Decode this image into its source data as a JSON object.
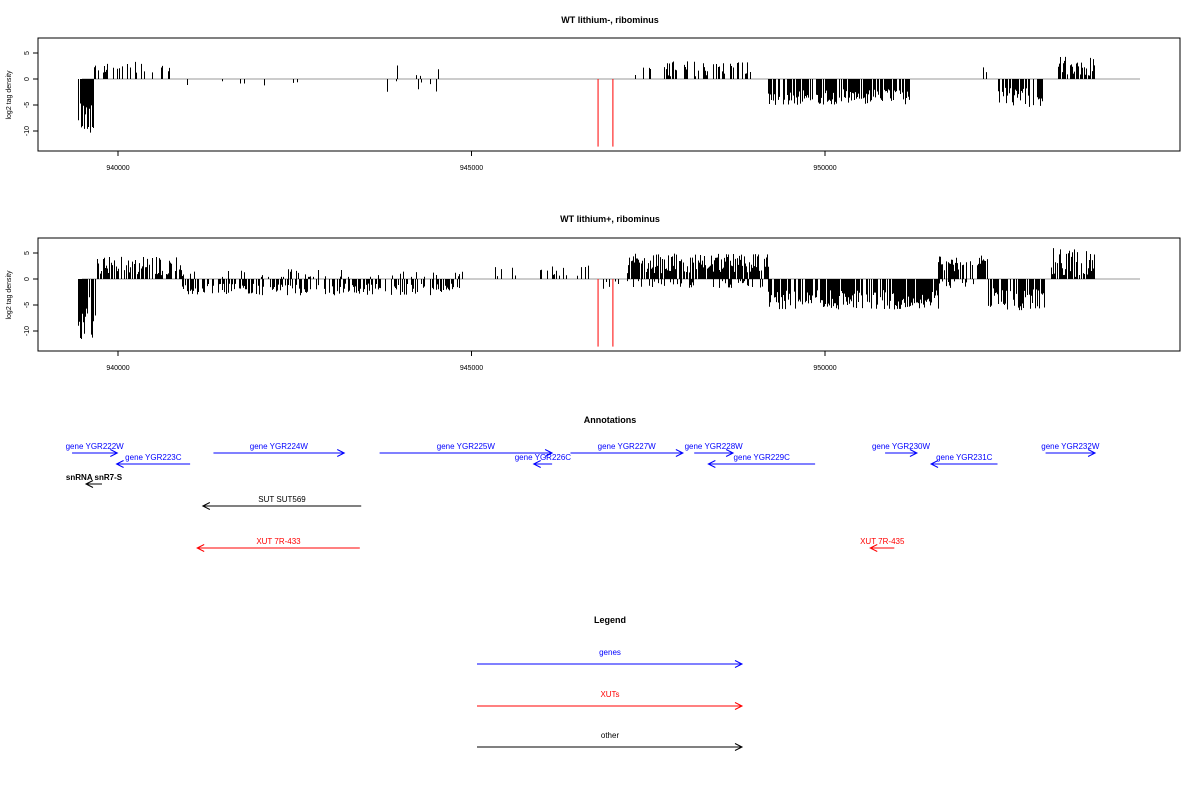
{
  "chart_data": [
    {
      "type": "bar",
      "title": "WT lithium-, ribominus",
      "ylabel": "log2 tag density",
      "xlim": [
        938850,
        953800
      ],
      "ylim": [
        -13,
        8
      ],
      "xticks": [
        940000,
        945000,
        950000
      ],
      "yticks": [
        5,
        0,
        -5,
        -10
      ],
      "ytick_labels": [
        "5",
        "0",
        "-5",
        "-10"
      ],
      "marker_lines": {
        "color": "#ff0000",
        "x": [
          946790,
          947000
        ],
        "y_range": [
          0,
          -13
        ]
      },
      "series": [
        {
          "segments": [
            {
              "x": [
                939430,
                939650
              ],
              "base": -3.5,
              "amp": 7,
              "sign": -1,
              "density": 0.9
            },
            {
              "x": [
                939650,
                940800
              ],
              "base": 2.0,
              "amp": 2.0,
              "sign": 1,
              "density": 0.3
            },
            {
              "x": [
                940900,
                942600
              ],
              "base": 1.0,
              "amp": 1.0,
              "sign": -1,
              "density": 0.08
            },
            {
              "x": [
                943800,
                944600
              ],
              "base": 1.5,
              "amp": 1.5,
              "sign": 1,
              "density": 0.08
            },
            {
              "x": [
                943800,
                944600
              ],
              "base": 1.5,
              "amp": 1.5,
              "sign": -1,
              "density": 0.06
            },
            {
              "x": [
                947250,
                949000
              ],
              "base": 2.0,
              "amp": 2.0,
              "sign": 1,
              "density": 0.35
            },
            {
              "x": [
                949200,
                951200
              ],
              "base": 3.5,
              "amp": 2.0,
              "sign": -1,
              "density": 0.75
            },
            {
              "x": [
                952100,
                952300
              ],
              "base": 2.0,
              "amp": 1.0,
              "sign": 1,
              "density": 0.2
            },
            {
              "x": [
                952400,
                953100
              ],
              "base": 3.5,
              "amp": 2.5,
              "sign": -1,
              "density": 0.7
            },
            {
              "x": [
                953300,
                953800
              ],
              "base": 2.5,
              "amp": 2.5,
              "sign": 1,
              "density": 0.7
            }
          ]
        }
      ]
    },
    {
      "type": "bar",
      "title": "WT lithium+, ribominus",
      "ylabel": "log2 tag density",
      "xlim": [
        938850,
        953800
      ],
      "ylim": [
        -13,
        8
      ],
      "xticks": [
        940000,
        945000,
        950000
      ],
      "yticks": [
        5,
        0,
        -5,
        -10
      ],
      "ytick_labels": [
        "5",
        "0",
        "-5",
        "-10"
      ],
      "marker_lines": {
        "color": "#ff0000",
        "x": [
          946790,
          947000
        ],
        "y_range": [
          0,
          -13
        ]
      },
      "series": [
        {
          "segments": [
            {
              "x": [
                939430,
                939680
              ],
              "base": -3.5,
              "amp": 8.5,
              "sign": -1,
              "density": 0.9
            },
            {
              "x": [
                939700,
                940900
              ],
              "base": 2.5,
              "amp": 2.5,
              "sign": 1,
              "density": 0.6
            },
            {
              "x": [
                940900,
                943200
              ],
              "base": 2.0,
              "amp": 1.5,
              "sign": -1,
              "density": 0.55
            },
            {
              "x": [
                940900,
                943200
              ],
              "base": 1.0,
              "amp": 1.5,
              "sign": 1,
              "density": 0.15
            },
            {
              "x": [
                943200,
                944900
              ],
              "base": 2.0,
              "amp": 1.5,
              "sign": -1,
              "density": 0.5
            },
            {
              "x": [
                943200,
                944900
              ],
              "base": 1.0,
              "amp": 1.0,
              "sign": 1,
              "density": 0.15
            },
            {
              "x": [
                945300,
                946700
              ],
              "base": 1.5,
              "amp": 1.5,
              "sign": 1,
              "density": 0.15
            },
            {
              "x": [
                946700,
                947100
              ],
              "base": 1.5,
              "amp": 1.5,
              "sign": -1,
              "density": 0.2
            },
            {
              "x": [
                947200,
                949200
              ],
              "base": 3.0,
              "amp": 2.5,
              "sign": 1,
              "density": 0.85
            },
            {
              "x": [
                947200,
                949200
              ],
              "base": 1.0,
              "amp": 1.0,
              "sign": -1,
              "density": 0.3
            },
            {
              "x": [
                949200,
                951600
              ],
              "base": 4.0,
              "amp": 2.5,
              "sign": -1,
              "density": 0.85
            },
            {
              "x": [
                951600,
                952300
              ],
              "base": 3.0,
              "amp": 2.0,
              "sign": 1,
              "density": 0.6
            },
            {
              "x": [
                951600,
                952300
              ],
              "base": 1.0,
              "amp": 1.0,
              "sign": -1,
              "density": 0.25
            },
            {
              "x": [
                952300,
                953100
              ],
              "base": 4.0,
              "amp": 3.0,
              "sign": -1,
              "density": 0.75
            },
            {
              "x": [
                953200,
                953800
              ],
              "base": 3.0,
              "amp": 4.0,
              "sign": 1,
              "density": 0.85
            }
          ]
        }
      ]
    }
  ],
  "annotations": {
    "title": "Annotations",
    "items": [
      {
        "label": "gene YGR222W",
        "color": "#0000ff",
        "dir": "right",
        "x": [
          939350,
          939990
        ]
      },
      {
        "label": "gene YGR223C",
        "color": "#0000ff",
        "dir": "left",
        "x": [
          939980,
          941020
        ]
      },
      {
        "label": "gene YGR224W",
        "color": "#0000ff",
        "dir": "right",
        "x": [
          941350,
          943200
        ]
      },
      {
        "label": "gene YGR225W",
        "color": "#0000ff",
        "dir": "right",
        "x": [
          943700,
          946140
        ]
      },
      {
        "label": "gene YGR226C",
        "color": "#0000ff",
        "dir": "left",
        "x": [
          945880,
          946140
        ]
      },
      {
        "label": "gene YGR227W",
        "color": "#0000ff",
        "dir": "right",
        "x": [
          946400,
          947990
        ]
      },
      {
        "label": "gene YGR228W",
        "color": "#0000ff",
        "dir": "right",
        "x": [
          948150,
          948700
        ]
      },
      {
        "label": "gene YGR229C",
        "color": "#0000ff",
        "dir": "left",
        "x": [
          948350,
          949860
        ]
      },
      {
        "label": "gene YGR230W",
        "color": "#0000ff",
        "dir": "right",
        "x": [
          950850,
          951300
        ]
      },
      {
        "label": "gene YGR231C",
        "color": "#0000ff",
        "dir": "left",
        "x": [
          951500,
          952440
        ]
      },
      {
        "label": "gene YGR232W",
        "color": "#0000ff",
        "dir": "right",
        "x": [
          953120,
          953820
        ]
      },
      {
        "label": "snRNA snR7-S",
        "color": "#000000",
        "dir": "left",
        "x": [
          937100,
          937340
        ],
        "bold": true
      },
      {
        "label": "SUT SUT569",
        "color": "#000000",
        "dir": "left",
        "x": [
          941200,
          943440
        ]
      },
      {
        "label": "XUT 7R-433",
        "color": "#ff0000",
        "dir": "left",
        "x": [
          941120,
          943420
        ]
      },
      {
        "label": "XUT 7R-435",
        "color": "#ff0000",
        "dir": "left",
        "x": [
          950640,
          950980
        ]
      }
    ]
  },
  "legend": {
    "title": "Legend",
    "items": [
      {
        "label": "genes",
        "color": "#0000ff"
      },
      {
        "label": "XUTs",
        "color": "#ff0000"
      },
      {
        "label": "other",
        "color": "#000000"
      }
    ]
  }
}
